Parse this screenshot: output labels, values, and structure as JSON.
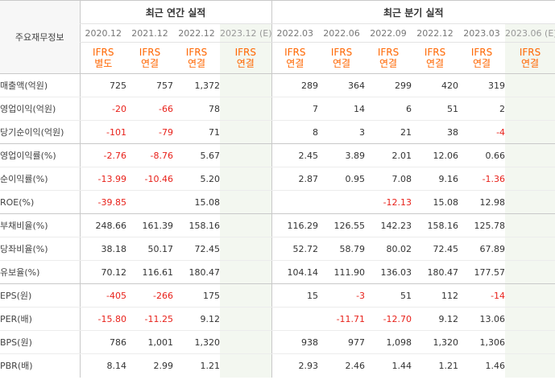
{
  "header": {
    "corner_label": "주요재무정보",
    "annual_title": "최근 연간 실적",
    "quarterly_title": "최근 분기 실적"
  },
  "periods": {
    "annual": [
      "2020.12",
      "2021.12",
      "2022.12",
      "2023.12 (E)"
    ],
    "quarterly": [
      "2022.03",
      "2022.06",
      "2022.09",
      "2022.12",
      "2023.03",
      "2023.06 (E)"
    ]
  },
  "basis": {
    "annual": [
      [
        "IFRS",
        "별도"
      ],
      [
        "IFRS",
        "연결"
      ],
      [
        "IFRS",
        "연결"
      ],
      [
        "IFRS",
        "연결"
      ]
    ],
    "quarterly": [
      [
        "IFRS",
        "연결"
      ],
      [
        "IFRS",
        "연결"
      ],
      [
        "IFRS",
        "연결"
      ],
      [
        "IFRS",
        "연결"
      ],
      [
        "IFRS",
        "연결"
      ],
      [
        "IFRS",
        "연결"
      ]
    ]
  },
  "rows": [
    {
      "label": "매출액(억원)",
      "values": [
        "725",
        "757",
        "1,372",
        "",
        "289",
        "364",
        "299",
        "420",
        "319",
        ""
      ]
    },
    {
      "label": "영업이익(억원)",
      "values": [
        "-20",
        "-66",
        "78",
        "",
        "7",
        "14",
        "6",
        "51",
        "2",
        ""
      ]
    },
    {
      "label": "당기순이익(억원)",
      "values": [
        "-101",
        "-79",
        "71",
        "",
        "8",
        "3",
        "21",
        "38",
        "-4",
        ""
      ]
    },
    {
      "label": "영업이익률(%)",
      "values": [
        "-2.76",
        "-8.76",
        "5.67",
        "",
        "2.45",
        "3.89",
        "2.01",
        "12.06",
        "0.66",
        ""
      ]
    },
    {
      "label": "순이익률(%)",
      "values": [
        "-13.99",
        "-10.46",
        "5.20",
        "",
        "2.87",
        "0.95",
        "7.08",
        "9.16",
        "-1.36",
        ""
      ]
    },
    {
      "label": "ROE(%)",
      "values": [
        "-39.85",
        "",
        "15.08",
        "",
        "",
        "",
        "-12.13",
        "15.08",
        "12.98",
        ""
      ]
    },
    {
      "label": "부채비율(%)",
      "values": [
        "248.66",
        "161.39",
        "158.16",
        "",
        "116.29",
        "126.55",
        "142.23",
        "158.16",
        "125.78",
        ""
      ]
    },
    {
      "label": "당좌비율(%)",
      "values": [
        "38.18",
        "50.17",
        "72.45",
        "",
        "52.72",
        "58.79",
        "80.02",
        "72.45",
        "67.89",
        ""
      ]
    },
    {
      "label": "유보율(%)",
      "values": [
        "70.12",
        "116.61",
        "180.47",
        "",
        "104.14",
        "111.90",
        "136.03",
        "180.47",
        "177.57",
        ""
      ]
    },
    {
      "label": "EPS(원)",
      "values": [
        "-405",
        "-266",
        "175",
        "",
        "15",
        "-3",
        "51",
        "112",
        "-14",
        ""
      ]
    },
    {
      "label": "PER(배)",
      "values": [
        "-15.80",
        "-11.25",
        "9.12",
        "",
        "",
        "-11.71",
        "-12.70",
        "9.12",
        "13.06",
        ""
      ]
    },
    {
      "label": "BPS(원)",
      "values": [
        "786",
        "1,001",
        "1,320",
        "",
        "938",
        "977",
        "1,098",
        "1,320",
        "1,306",
        ""
      ]
    },
    {
      "label": "PBR(배)",
      "values": [
        "8.14",
        "2.99",
        "1.21",
        "",
        "2.93",
        "2.46",
        "1.44",
        "1.21",
        "1.46",
        ""
      ]
    }
  ],
  "colors": {
    "negative": "#e8211a",
    "basis_text": "#ff6600",
    "estimate_bg": "#f3f7f0"
  }
}
